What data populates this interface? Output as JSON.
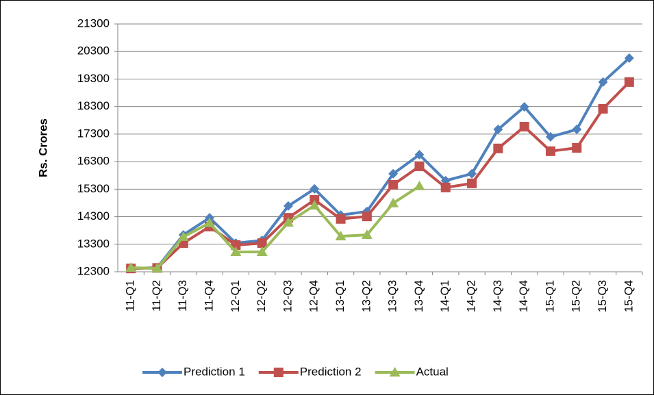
{
  "chart_data": {
    "type": "line",
    "y_label": "Rs. Crores",
    "categories": [
      "11-Q1",
      "11-Q2",
      "11-Q3",
      "11-Q4",
      "12-Q1",
      "12-Q2",
      "12-Q3",
      "12-Q4",
      "13-Q1",
      "13-Q2",
      "13-Q3",
      "13-Q4",
      "14-Q1",
      "14-Q2",
      "14-Q3",
      "14-Q4",
      "15-Q1",
      "15-Q2",
      "15-Q3",
      "15-Q4"
    ],
    "series": [
      {
        "name": "Prediction 1",
        "color": "#4f81bd",
        "marker": "diamond",
        "values": [
          12420,
          12450,
          13640,
          14260,
          13340,
          13440,
          14690,
          15310,
          14360,
          14490,
          15860,
          16550,
          15610,
          15860,
          17470,
          18290,
          17200,
          17470,
          19190,
          20060
        ]
      },
      {
        "name": "Prediction 2",
        "color": "#c0504d",
        "marker": "square",
        "values": [
          12420,
          12440,
          13340,
          13940,
          13270,
          13340,
          14260,
          14910,
          14220,
          14310,
          15460,
          16130,
          15360,
          15510,
          16780,
          17570,
          16680,
          16800,
          18220,
          19190
        ]
      },
      {
        "name": "Actual",
        "color": "#9bbb59",
        "marker": "triangle",
        "values": [
          12450,
          12420,
          13570,
          14070,
          13020,
          13020,
          14090,
          14710,
          13590,
          13640,
          14790,
          15410,
          null,
          null,
          null,
          null,
          null,
          null,
          null,
          null
        ]
      }
    ],
    "ylim": [
      12300,
      21300
    ],
    "yticks": [
      12300,
      13300,
      14300,
      15300,
      16300,
      17300,
      18300,
      19300,
      20300,
      21300
    ],
    "grid": true,
    "legend": "bottom"
  }
}
